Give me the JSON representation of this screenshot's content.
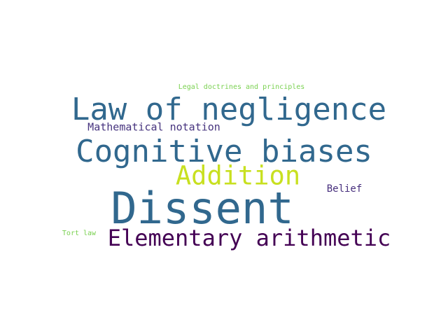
{
  "words": [
    {
      "text": "Legal doctrines and principles",
      "color": "#7ad151"
    },
    {
      "text": "Law of negligence",
      "color": "#31688e"
    },
    {
      "text": "Mathematical notation",
      "color": "#46337e"
    },
    {
      "text": "Cognitive biases",
      "color": "#31688e"
    },
    {
      "text": "Addition",
      "color": "#c8e020"
    },
    {
      "text": "Belief",
      "color": "#472f7d"
    },
    {
      "text": "Dissent",
      "color": "#31688e"
    },
    {
      "text": "Tort law",
      "color": "#7ad151"
    },
    {
      "text": "Elementary arithmetic",
      "color": "#440154"
    }
  ]
}
